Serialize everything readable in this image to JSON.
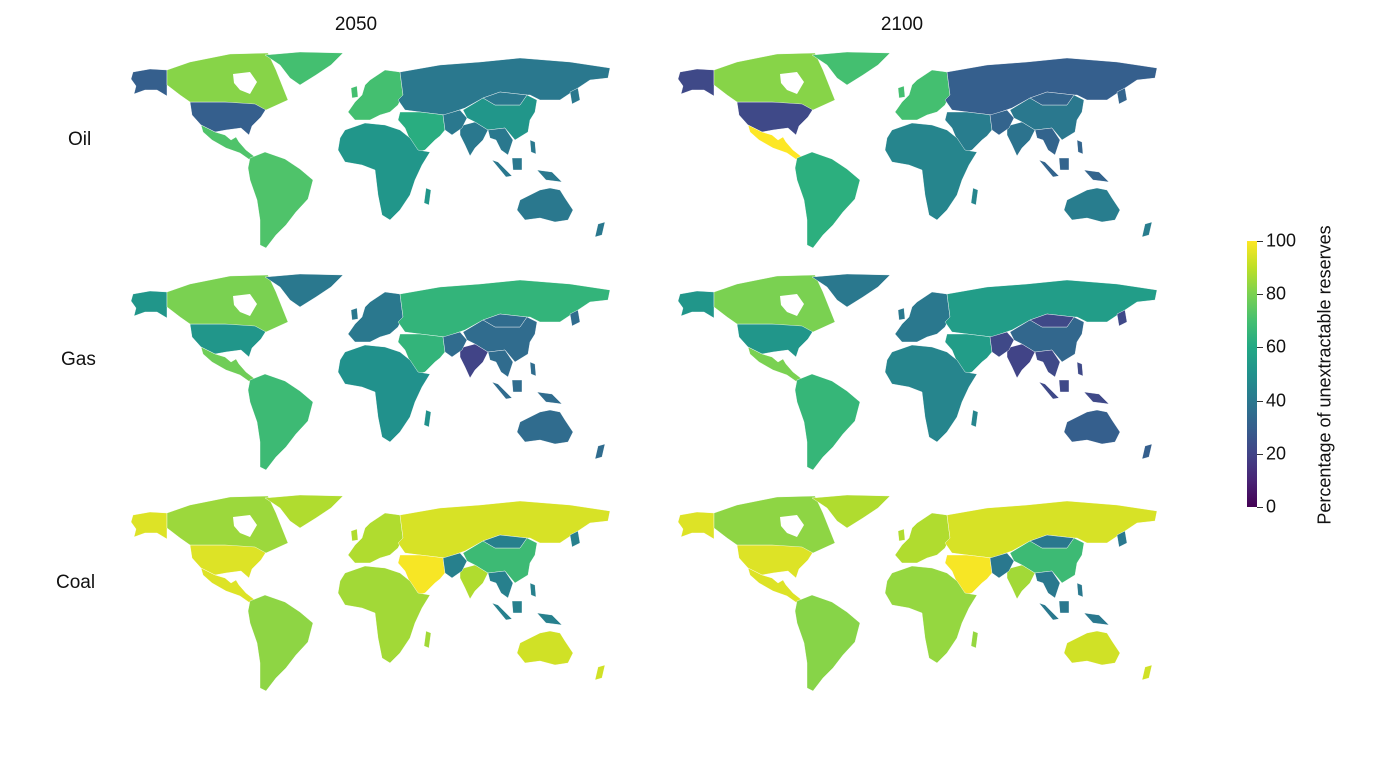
{
  "chart_data": {
    "type": "choropleth",
    "columns": [
      "2050",
      "2100"
    ],
    "rows": [
      "Oil",
      "Gas",
      "Coal"
    ],
    "colorbar": {
      "title": "Percentage of unextractable reserves",
      "ticks": [
        "0",
        "20",
        "40",
        "60",
        "80",
        "100"
      ],
      "range": [
        0,
        100
      ],
      "colormap": "viridis"
    },
    "panels": [
      {
        "row": "Oil",
        "column": "2050",
        "values": {
          "canada": 82,
          "usa": 30,
          "central_america": 72,
          "south_america": 72,
          "europe": 70,
          "former_soviet_union": 40,
          "middle_east": 62,
          "africa": 52,
          "india": 40,
          "china": 52,
          "other_asia": 40,
          "australia_nz": 40
        }
      },
      {
        "row": "Oil",
        "column": "2100",
        "values": {
          "canada": 82,
          "usa": 22,
          "central_america": 100,
          "south_america": 63,
          "europe": 70,
          "former_soviet_union": 30,
          "middle_east": 42,
          "africa": 45,
          "india": 38,
          "china": 40,
          "other_asia": 32,
          "australia_nz": 42
        }
      },
      {
        "row": "Gas",
        "column": "2050",
        "values": {
          "canada": 80,
          "usa": 52,
          "central_america": 78,
          "south_america": 68,
          "europe": 40,
          "former_soviet_union": 65,
          "middle_east": 65,
          "africa": 50,
          "india": 20,
          "china": 35,
          "other_asia": 35,
          "australia_nz": 35
        }
      },
      {
        "row": "Gas",
        "column": "2100",
        "values": {
          "canada": 80,
          "usa": 52,
          "central_america": 80,
          "south_america": 66,
          "europe": 40,
          "former_soviet_union": 55,
          "middle_east": 55,
          "africa": 45,
          "india": 20,
          "china": 33,
          "other_asia": 22,
          "australia_nz": 30
        }
      },
      {
        "row": "Coal",
        "column": "2050",
        "values": {
          "canada": 85,
          "usa": 95,
          "central_america": 95,
          "south_america": 83,
          "europe": 88,
          "former_soviet_union": 94,
          "middle_east": 99,
          "africa": 86,
          "india": 88,
          "china": 68,
          "other_asia": 43,
          "australia_nz": 93
        }
      },
      {
        "row": "Coal",
        "column": "2100",
        "values": {
          "canada": 83,
          "usa": 95,
          "central_america": 95,
          "south_america": 82,
          "europe": 88,
          "former_soviet_union": 94,
          "middle_east": 99,
          "africa": 84,
          "india": 86,
          "china": 68,
          "other_asia": 40,
          "australia_nz": 93
        }
      }
    ]
  }
}
